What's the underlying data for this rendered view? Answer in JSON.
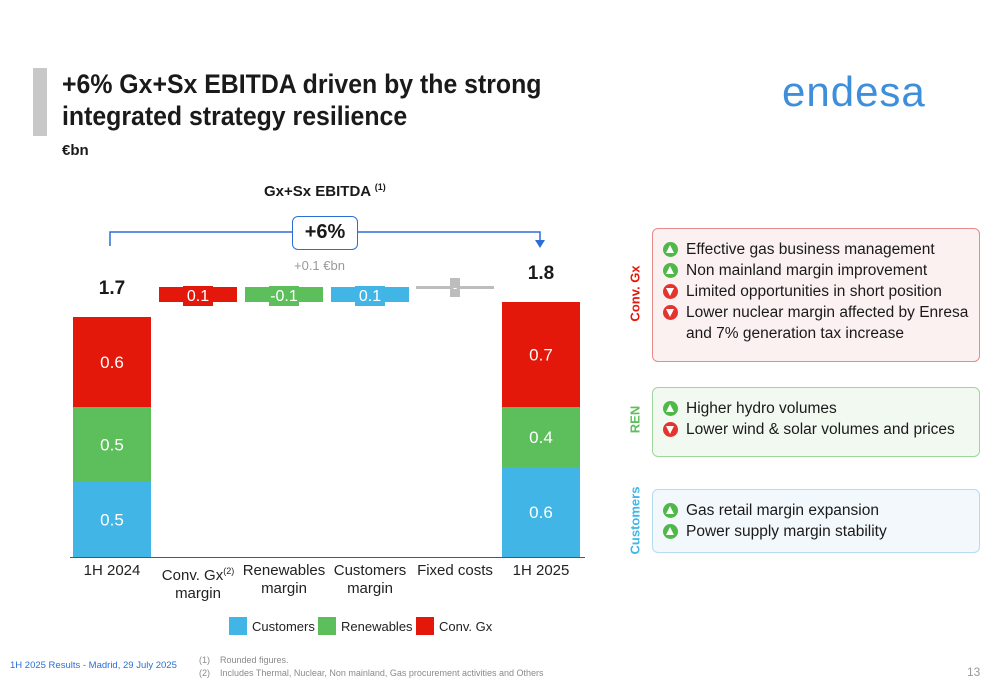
{
  "header": {
    "title": "+6% Gx+Sx EBITDA driven by the strong integrated strategy resilience",
    "unit": "€bn",
    "logo_text": "endesa"
  },
  "chart_data": {
    "type": "bar",
    "subtype": "waterfall",
    "title": "Gx+Sx EBITDA",
    "title_note": "(1)",
    "categories": [
      "1H 2024",
      "Conv. Gx margin",
      "Renewables margin",
      "Customers margin",
      "Fixed costs",
      "1H 2025"
    ],
    "category_labels": [
      {
        "line1": "1H 2024",
        "line2": "",
        "sup": ""
      },
      {
        "line1": "Conv. Gx",
        "line2": "margin",
        "sup": "(2)"
      },
      {
        "line1": "Renewables",
        "line2": "margin",
        "sup": ""
      },
      {
        "line1": "Customers",
        "line2": "margin",
        "sup": ""
      },
      {
        "line1": "Fixed costs",
        "line2": "",
        "sup": ""
      },
      {
        "line1": "1H 2025",
        "line2": "",
        "sup": ""
      }
    ],
    "totals": [
      {
        "category": "1H 2024",
        "total": 1.7,
        "total_label": "1.7",
        "stack": [
          {
            "series": "Customers",
            "value": 0.5,
            "label": "0.5"
          },
          {
            "series": "Renewables",
            "value": 0.5,
            "label": "0.5"
          },
          {
            "series": "Conv. Gx",
            "value": 0.6,
            "label": "0.6"
          }
        ]
      },
      {
        "category": "1H 2025",
        "total": 1.8,
        "total_label": "1.8",
        "stack": [
          {
            "series": "Customers",
            "value": 0.6,
            "label": "0.6"
          },
          {
            "series": "Renewables",
            "value": 0.4,
            "label": "0.4"
          },
          {
            "series": "Conv. Gx",
            "value": 0.7,
            "label": "0.7"
          }
        ]
      }
    ],
    "steps": [
      {
        "category": "Conv. Gx margin",
        "series": "Conv. Gx",
        "value": 0.1,
        "label": "0.1"
      },
      {
        "category": "Renewables margin",
        "series": "Renewables",
        "value": -0.1,
        "label": "-0.1"
      },
      {
        "category": "Customers margin",
        "series": "Customers",
        "value": 0.1,
        "label": "0.1"
      },
      {
        "category": "Fixed costs",
        "series": "Fixed costs",
        "value": 0.0,
        "label": "-"
      }
    ],
    "growth": {
      "percent_label": "+6%",
      "delta_label": "+0.1 €bn"
    },
    "legend": [
      "Customers",
      "Renewables",
      "Conv. Gx"
    ],
    "legend_position": "bottom",
    "grid": false
  },
  "colors": {
    "Customers": "#41b6e6",
    "Renewables": "#5cbf5c",
    "Conv. Gx": "#e3170a",
    "Fixed costs": "#bdbdbd",
    "accent": "#2b6fd6"
  },
  "panels": [
    {
      "label": "Conv. Gx",
      "label_color": "#e3170a",
      "items": [
        {
          "dir": "up",
          "text": "Effective gas business management"
        },
        {
          "dir": "up",
          "text": "Non mainland margin improvement"
        },
        {
          "dir": "down",
          "text": "Limited opportunities in short position"
        },
        {
          "dir": "down",
          "text": "Lower nuclear margin affected by Enresa and 7% generation tax increase"
        }
      ]
    },
    {
      "label": "REN",
      "label_color": "#5cbf5c",
      "items": [
        {
          "dir": "up",
          "text": "Higher hydro volumes"
        },
        {
          "dir": "down",
          "text": "Lower wind & solar volumes and prices"
        }
      ]
    },
    {
      "label": "Customers",
      "label_color": "#41b6e6",
      "items": [
        {
          "dir": "up",
          "text": "Gas retail margin expansion"
        },
        {
          "dir": "up",
          "text": "Power supply margin stability"
        }
      ]
    }
  ],
  "footer": {
    "event": "1H 2025 Results - Madrid, 29 July 2025",
    "notes": [
      {
        "num": "(1)",
        "text": "Rounded figures."
      },
      {
        "num": "(2)",
        "text": "Includes Thermal, Nuclear, Non mainland, Gas procurement activities and Others"
      }
    ],
    "page": "13"
  }
}
